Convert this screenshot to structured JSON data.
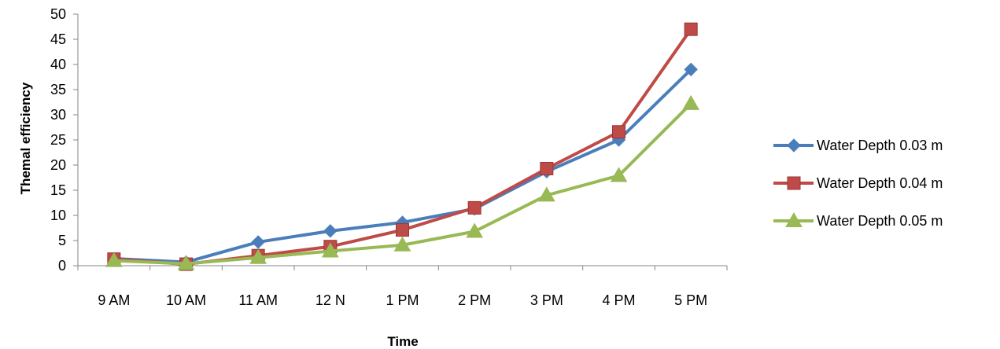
{
  "chart_data": {
    "type": "line",
    "title": "",
    "xlabel": "Time",
    "ylabel": "Themal efficiency",
    "categories": [
      "9 AM",
      "10 AM",
      "11 AM",
      "12 N",
      "1 PM",
      "2 PM",
      "3 PM",
      "4 PM",
      "5 PM"
    ],
    "ylim": [
      0,
      50
    ],
    "yticks": [
      0,
      5,
      10,
      15,
      20,
      25,
      30,
      35,
      40,
      45,
      50
    ],
    "grid": false,
    "legend_position": "right",
    "series": [
      {
        "name": "Water Depth 0.03 m",
        "color": "#4a7ebb",
        "marker": "diamond",
        "values": [
          1.4,
          0.7,
          4.7,
          6.9,
          8.6,
          11.3,
          18.7,
          25.0,
          39.0
        ]
      },
      {
        "name": "Water Depth 0.04 m",
        "color": "#be4b48",
        "marker": "square",
        "values": [
          1.3,
          0.3,
          2.0,
          3.8,
          7.1,
          11.5,
          19.3,
          26.6,
          47.0
        ]
      },
      {
        "name": "Water Depth 0.05 m",
        "color": "#98b954",
        "marker": "triangle",
        "values": [
          1.0,
          0.4,
          1.6,
          2.9,
          4.1,
          6.8,
          14.0,
          17.9,
          32.2
        ]
      }
    ]
  }
}
